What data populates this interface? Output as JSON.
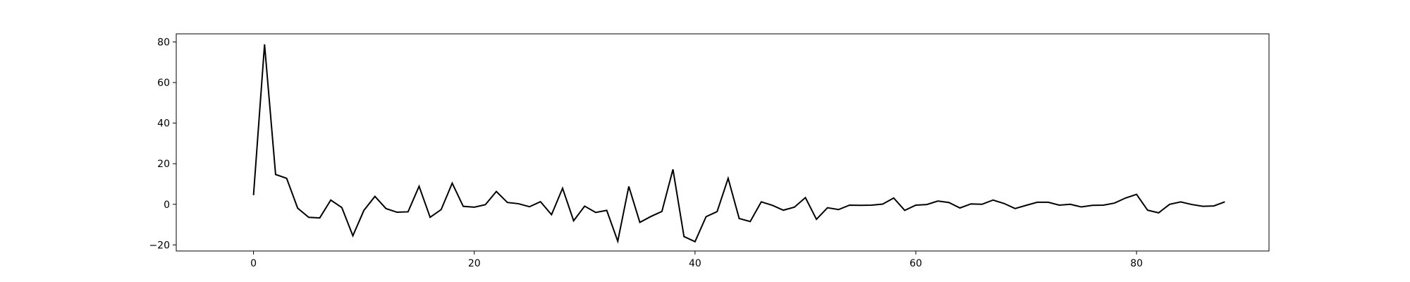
{
  "chart_data": {
    "type": "line",
    "title": "",
    "xlabel": "",
    "ylabel": "",
    "xlim": [
      -7,
      92
    ],
    "ylim": [
      -23,
      84
    ],
    "x_ticks": [
      0,
      20,
      40,
      60,
      80
    ],
    "y_ticks": [
      -20,
      0,
      20,
      40,
      60,
      80
    ],
    "grid": false,
    "legend": "none",
    "line_color": "#000000",
    "series": [
      {
        "x": [
          0,
          1,
          2,
          3,
          4,
          5,
          6,
          7,
          8,
          9,
          10,
          11,
          12,
          13,
          14,
          15,
          16,
          17,
          18,
          19,
          20,
          21,
          22,
          23,
          24,
          25,
          26,
          27,
          28,
          29,
          30,
          31,
          32,
          33,
          34,
          35,
          36,
          37,
          38,
          39,
          40,
          41,
          42,
          43,
          44,
          45,
          46,
          47,
          48,
          49,
          50,
          51,
          52,
          53,
          54,
          55,
          56,
          57,
          58,
          59,
          60,
          61,
          62,
          63,
          64,
          65,
          66,
          67,
          68,
          69,
          70,
          71,
          72,
          73,
          74,
          75,
          76,
          77,
          78,
          79,
          80,
          81,
          82,
          83,
          84,
          85,
          86,
          87,
          88
        ],
        "values": [
          4.5,
          78.8,
          14.7,
          12.8,
          -1.9,
          -6.4,
          -6.7,
          2.1,
          -1.6,
          -15.5,
          -3.0,
          3.9,
          -2.1,
          -3.9,
          -3.7,
          8.9,
          -6.4,
          -2.6,
          10.4,
          -1.0,
          -1.4,
          -0.2,
          6.3,
          0.9,
          0.3,
          -1.2,
          1.3,
          -5.1,
          7.9,
          -8.1,
          -0.9,
          -4.0,
          -3.0,
          -18.2,
          8.8,
          -8.9,
          -6.0,
          -3.5,
          17.2,
          -15.9,
          -18.4,
          -6.1,
          -3.6,
          12.8,
          -7.0,
          -8.5,
          1.2,
          -0.5,
          -2.9,
          -1.4,
          3.3,
          -7.4,
          -1.7,
          -2.6,
          -0.4,
          -0.5,
          -0.4,
          0.1,
          3.1,
          -3.0,
          -0.4,
          -0.1,
          1.6,
          0.9,
          -1.8,
          0.2,
          0.0,
          2.1,
          0.4,
          -2.1,
          -0.5,
          1.0,
          1.0,
          -0.4,
          0.0,
          -1.3,
          -0.5,
          -0.4,
          0.6,
          3.1,
          4.9,
          -2.9,
          -4.2,
          0.0,
          1.2,
          -0.1,
          -1.0,
          -0.8,
          1.2
        ]
      }
    ]
  }
}
